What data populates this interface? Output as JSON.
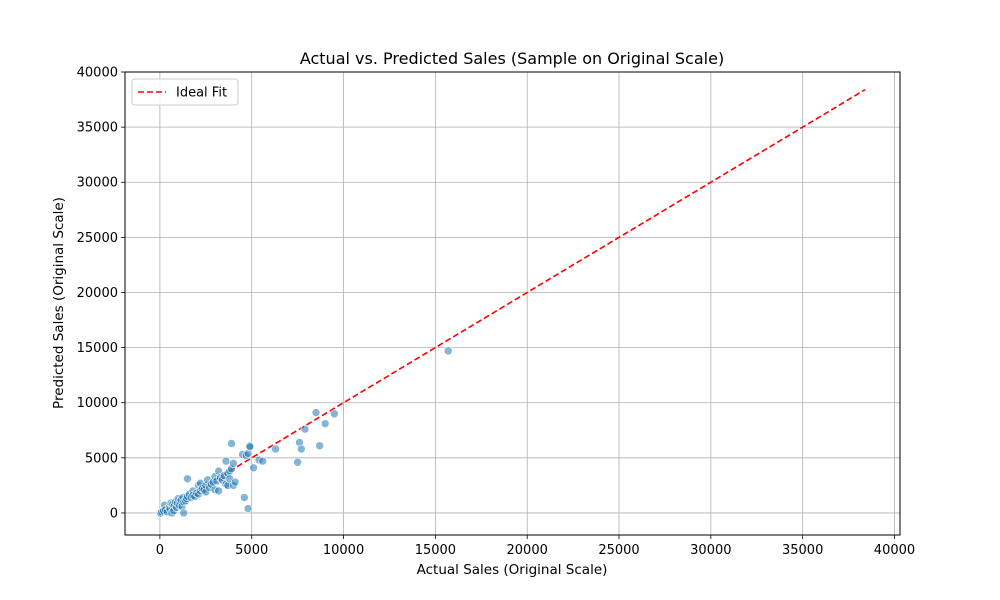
{
  "chart_data": {
    "type": "scatter",
    "title": "Actual vs. Predicted Sales (Sample on Original Scale)",
    "xlabel": "Actual Sales (Original Scale)",
    "ylabel": "Predicted Sales (Original Scale)",
    "xlim": [
      -1900,
      40300
    ],
    "ylim": [
      -2000,
      40000
    ],
    "xticks": [
      0,
      5000,
      10000,
      15000,
      20000,
      25000,
      30000,
      35000,
      40000
    ],
    "yticks": [
      0,
      5000,
      10000,
      15000,
      20000,
      25000,
      30000,
      35000,
      40000
    ],
    "grid": true,
    "legend": {
      "position": "top-left",
      "entries": [
        {
          "label": "Ideal Fit",
          "color": "#ff0000",
          "style": "dashed"
        }
      ]
    },
    "ideal_fit": {
      "x": [
        0,
        38400
      ],
      "y": [
        0,
        38400
      ],
      "color": "#ff0000"
    },
    "point_color": "#1f77b4",
    "points": [
      [
        0,
        0
      ],
      [
        50,
        -20
      ],
      [
        100,
        100
      ],
      [
        200,
        200
      ],
      [
        250,
        700
      ],
      [
        300,
        300
      ],
      [
        400,
        100
      ],
      [
        500,
        500
      ],
      [
        550,
        350
      ],
      [
        600,
        900
      ],
      [
        650,
        0
      ],
      [
        700,
        500
      ],
      [
        700,
        800
      ],
      [
        750,
        200
      ],
      [
        800,
        700
      ],
      [
        850,
        1000
      ],
      [
        900,
        500
      ],
      [
        950,
        900
      ],
      [
        1000,
        1300
      ],
      [
        1050,
        700
      ],
      [
        1100,
        1000
      ],
      [
        1150,
        1200
      ],
      [
        1200,
        600
      ],
      [
        1250,
        1400
      ],
      [
        1300,
        0
      ],
      [
        1300,
        1000
      ],
      [
        1400,
        1100
      ],
      [
        1450,
        1300
      ],
      [
        1500,
        3100
      ],
      [
        1500,
        1500
      ],
      [
        1600,
        1700
      ],
      [
        1700,
        1400
      ],
      [
        1800,
        2000
      ],
      [
        1800,
        1600
      ],
      [
        1900,
        1500
      ],
      [
        2000,
        1800
      ],
      [
        2100,
        2500
      ],
      [
        2100,
        1700
      ],
      [
        2200,
        2000
      ],
      [
        2200,
        2700
      ],
      [
        2300,
        2200
      ],
      [
        2400,
        2100
      ],
      [
        2500,
        2500
      ],
      [
        2500,
        1900
      ],
      [
        2600,
        3000
      ],
      [
        2700,
        2300
      ],
      [
        2800,
        2600
      ],
      [
        2900,
        2800
      ],
      [
        3000,
        2100
      ],
      [
        3000,
        3300
      ],
      [
        3100,
        2900
      ],
      [
        3200,
        3800
      ],
      [
        3200,
        2000
      ],
      [
        3300,
        3200
      ],
      [
        3400,
        3000
      ],
      [
        3500,
        3400
      ],
      [
        3600,
        4700
      ],
      [
        3600,
        2600
      ],
      [
        3700,
        3600
      ],
      [
        3700,
        2500
      ],
      [
        3800,
        3800
      ],
      [
        3800,
        3100
      ],
      [
        3900,
        6300
      ],
      [
        3900,
        4000
      ],
      [
        4000,
        2500
      ],
      [
        4000,
        4500
      ],
      [
        4100,
        2800
      ],
      [
        4500,
        5300
      ],
      [
        4600,
        1400
      ],
      [
        4700,
        5200
      ],
      [
        4800,
        5400
      ],
      [
        4800,
        400
      ],
      [
        4900,
        6100
      ],
      [
        4900,
        6000
      ],
      [
        5100,
        4100
      ],
      [
        5400,
        4800
      ],
      [
        5600,
        4700
      ],
      [
        6300,
        5800
      ],
      [
        7500,
        4600
      ],
      [
        7600,
        6400
      ],
      [
        7700,
        5800
      ],
      [
        7900,
        7600
      ],
      [
        8500,
        9100
      ],
      [
        8700,
        6100
      ],
      [
        9000,
        8100
      ],
      [
        9500,
        9000
      ],
      [
        15700,
        14700
      ]
    ]
  }
}
